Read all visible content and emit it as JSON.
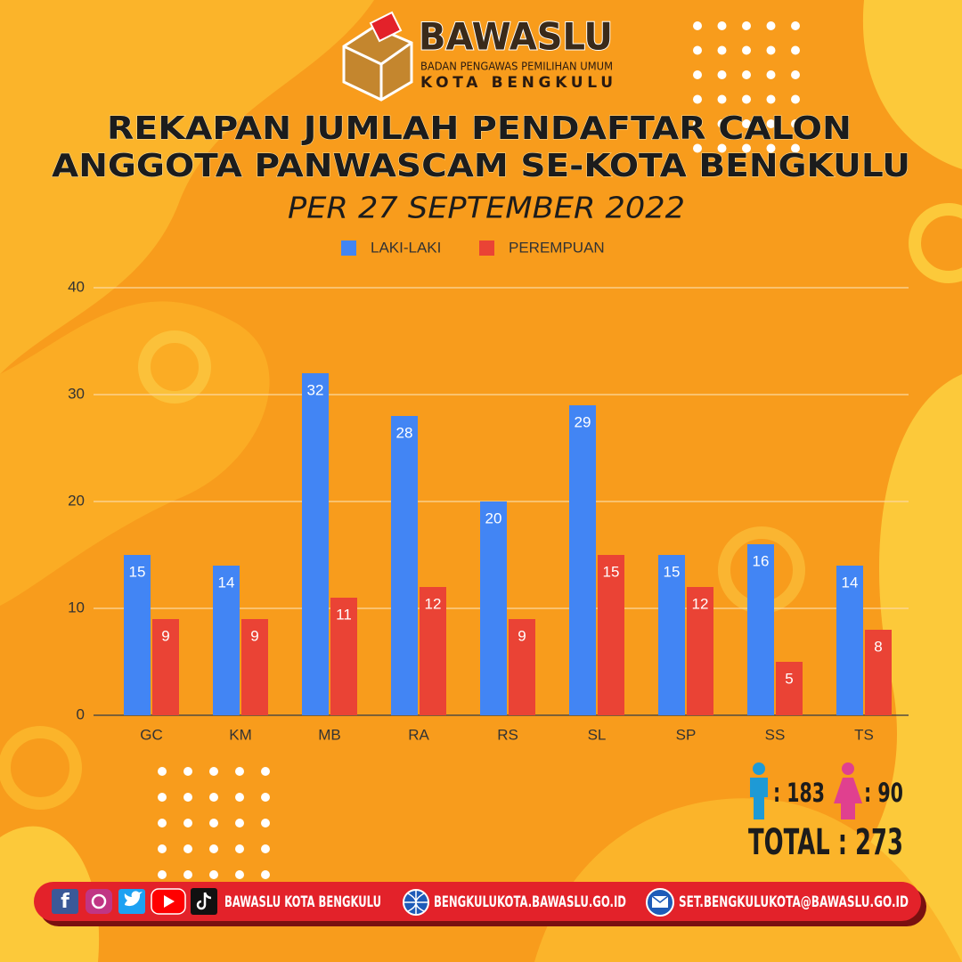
{
  "header": {
    "logo_name": "BAWASLU",
    "logo_sub": "BADAN PENGAWAS PEMILIHAN UMUM",
    "logo_city": "KOTA BENGKULU"
  },
  "chart_data": {
    "type": "bar",
    "title": [
      "REKAPAN JUMLAH PENDAFTAR CALON",
      "ANGGOTA PANWASCAM SE-KOTA BENGKULU"
    ],
    "subtitle": "PER 27 SEPTEMBER 2022",
    "categories": [
      "GC",
      "KM",
      "MB",
      "RA",
      "RS",
      "SL",
      "SP",
      "SS",
      "TS"
    ],
    "series": [
      {
        "name": "LAKI-LAKI",
        "color": "#4285f4",
        "values": [
          15,
          14,
          32,
          28,
          20,
          29,
          15,
          16,
          14
        ]
      },
      {
        "name": "PEREMPUAN",
        "color": "#ea4335",
        "values": [
          9,
          9,
          11,
          12,
          9,
          15,
          12,
          5,
          8
        ]
      }
    ],
    "ylim": [
      0,
      40
    ],
    "yticks": [
      0,
      10,
      20,
      30,
      40
    ],
    "grid": true,
    "legend": "top"
  },
  "totals": {
    "male": ": 183",
    "female": ": 90",
    "total": "TOTAL : 273"
  },
  "footer": {
    "social": "BAWASLU KOTA BENGKULU",
    "website": "BENGKULUKOTA.BAWASLU.GO.ID",
    "email": "SET.BENGKULUKOTA@BAWASLU.GO.ID"
  }
}
